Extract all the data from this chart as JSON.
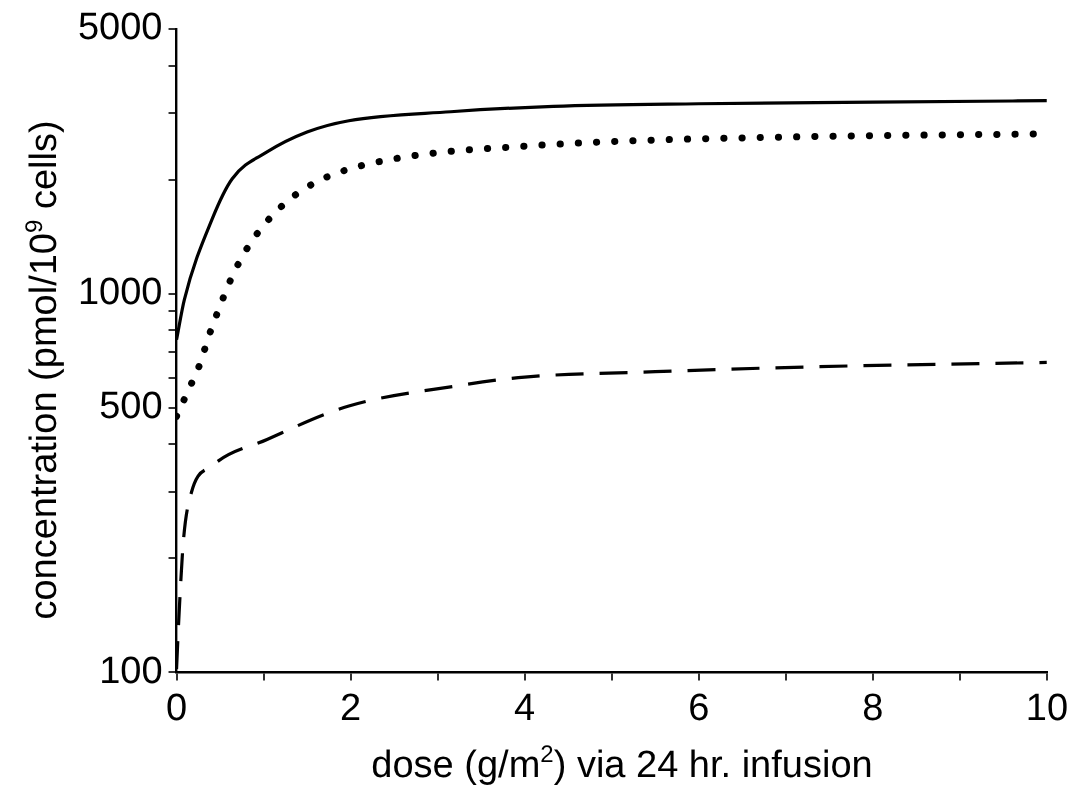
{
  "chart_data": {
    "type": "line",
    "xlabel": "dose (g/m$^{2}$) via 24 hr. infusion",
    "ylabel": "concentration (pmol/10$^{9}$ cells)",
    "log": "y",
    "grid": false,
    "legend": false,
    "marker": "none",
    "xlim": [
      0,
      10
    ],
    "xticks": [
      0,
      {
        "value": 1,
        "label": null
      },
      2,
      {
        "value": 3,
        "label": null
      },
      4,
      {
        "value": 5,
        "label": null
      },
      6,
      {
        "value": 7,
        "label": null
      },
      8,
      {
        "value": 9,
        "label": null
      },
      10
    ],
    "ylim": [
      100,
      5000
    ],
    "yticks": [
      100,
      {
        "value": 200,
        "label": null
      },
      {
        "value": 300,
        "label": null
      },
      {
        "value": 400,
        "label": null
      },
      500,
      {
        "value": 600,
        "label": null
      },
      {
        "value": 700,
        "label": null
      },
      {
        "value": 800,
        "label": null
      },
      {
        "value": 900,
        "label": null
      },
      1000,
      {
        "value": 2000,
        "label": null
      },
      {
        "value": 3000,
        "label": null
      },
      {
        "value": 4000,
        "label": null
      },
      5000
    ],
    "series": [
      {
        "color": "#000000",
        "line_style": "solid",
        "x": [
          0,
          0.09,
          0.41,
          0.64,
          1.04,
          1.5,
          1.98,
          3.15,
          4.33,
          6,
          8,
          10
        ],
        "values": [
          755,
          964,
          1575,
          2010,
          2365,
          2670,
          2860,
          3020,
          3120,
          3170,
          3200,
          3230
        ]
      },
      {
        "color": "#000000",
        "line_style": "dotted",
        "x": [
          0,
          0.13,
          0.27,
          0.37,
          0.49,
          0.62,
          0.78,
          1.0,
          1.29,
          1.62,
          1.95,
          2.28,
          2.93,
          3.92,
          5,
          7.23,
          10
        ],
        "values": [
          474,
          552,
          653,
          771,
          915,
          1085,
          1281,
          1513,
          1766,
          1978,
          2120,
          2218,
          2345,
          2443,
          2520,
          2595,
          2640
        ]
      },
      {
        "color": "#000000",
        "line_style": "dashed",
        "x": [
          0,
          0.03,
          0.08,
          0.17,
          0.41,
          1.04,
          1.98,
          3.23,
          4.0,
          5.5,
          7.22,
          10
        ],
        "values": [
          102,
          144,
          224,
          298,
          351,
          412,
          505,
          571,
          602,
          622,
          640,
          658
        ]
      }
    ]
  }
}
